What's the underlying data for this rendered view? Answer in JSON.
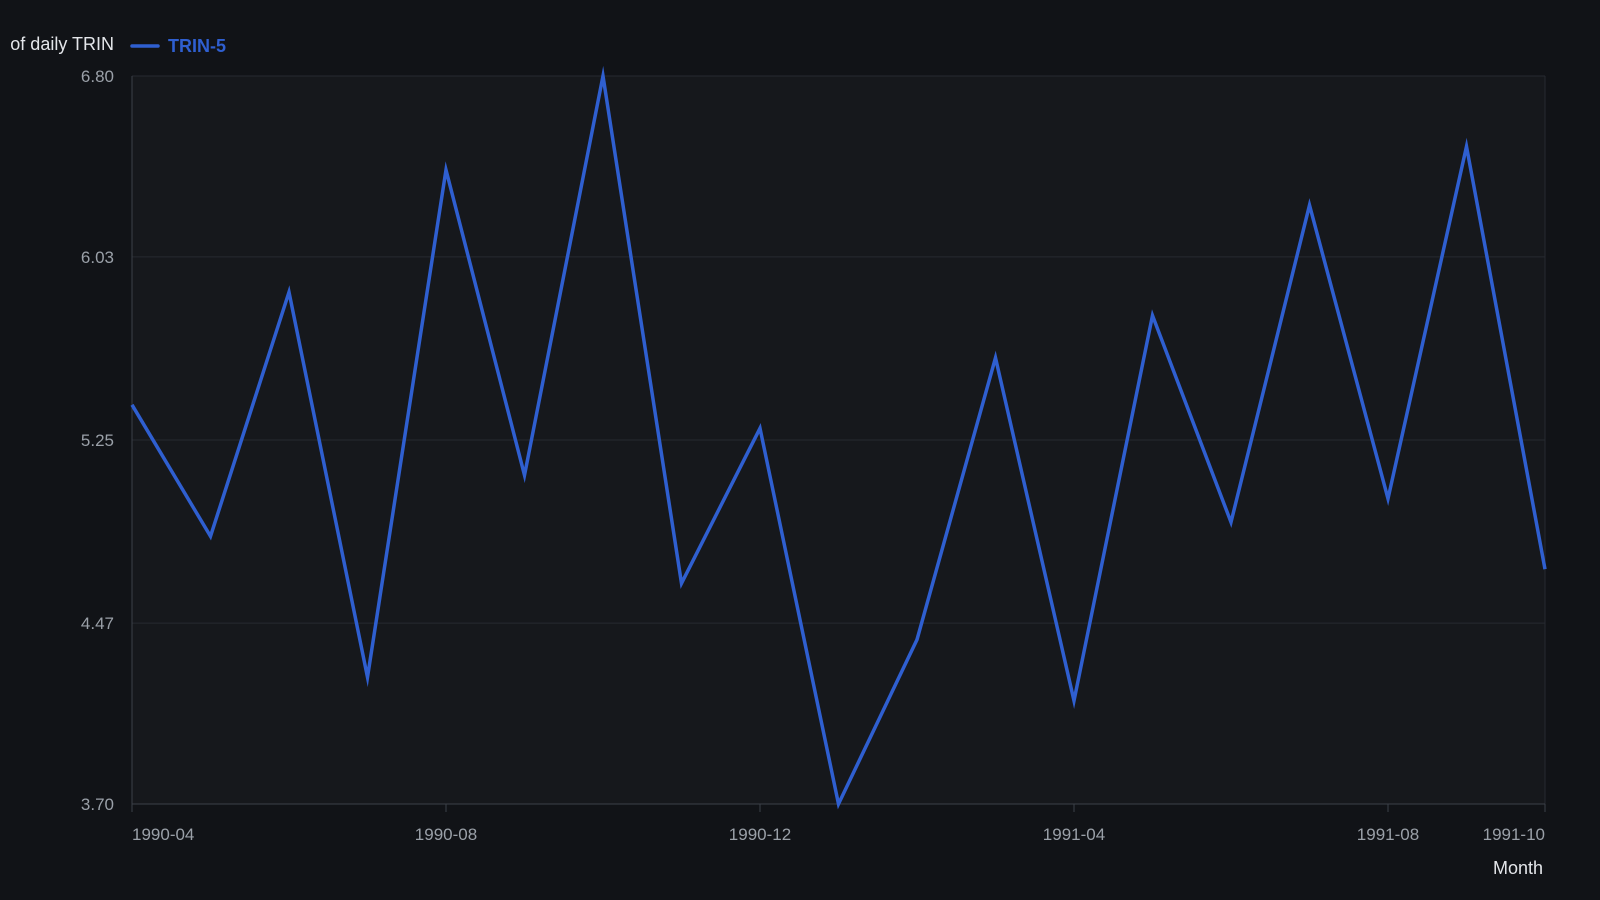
{
  "chart_data": {
    "type": "line",
    "title": "",
    "ylabel": "of daily TRIN",
    "xlabel": "Month",
    "ylim": [
      3.7,
      6.8
    ],
    "y_ticks": [
      "3.70",
      "4.47",
      "5.25",
      "6.03",
      "6.80"
    ],
    "x_ticks": [
      {
        "label": "1990-04",
        "month": "1990-04"
      },
      {
        "label": "1990-08",
        "month": "1990-08"
      },
      {
        "label": "1990-12",
        "month": "1990-12"
      },
      {
        "label": "1991-04",
        "month": "1991-04"
      },
      {
        "label": "1991-08",
        "month": "1991-08"
      },
      {
        "label": "1991-10",
        "month": "1991-10"
      }
    ],
    "grid": true,
    "legend": "top-left",
    "x": [
      "1990-04",
      "1990-05",
      "1990-06",
      "1990-07",
      "1990-08",
      "1990-09",
      "1990-10",
      "1990-11",
      "1990-12",
      "1991-01",
      "1991-02",
      "1991-03",
      "1991-04",
      "1991-05",
      "1991-06",
      "1991-07",
      "1991-08",
      "1991-09",
      "1991-10"
    ],
    "series": [
      {
        "name": "TRIN-5",
        "color": "#2f5fd0",
        "values": [
          5.4,
          4.84,
          5.88,
          4.24,
          6.4,
          5.1,
          6.8,
          4.64,
          5.3,
          3.7,
          4.4,
          5.6,
          4.14,
          5.78,
          4.9,
          6.25,
          5.0,
          6.5,
          4.7
        ]
      }
    ]
  },
  "colors": {
    "background": "#111317",
    "plot_background": "#16181c",
    "gridline": "#262a30",
    "axis_line": "#3c4048"
  }
}
